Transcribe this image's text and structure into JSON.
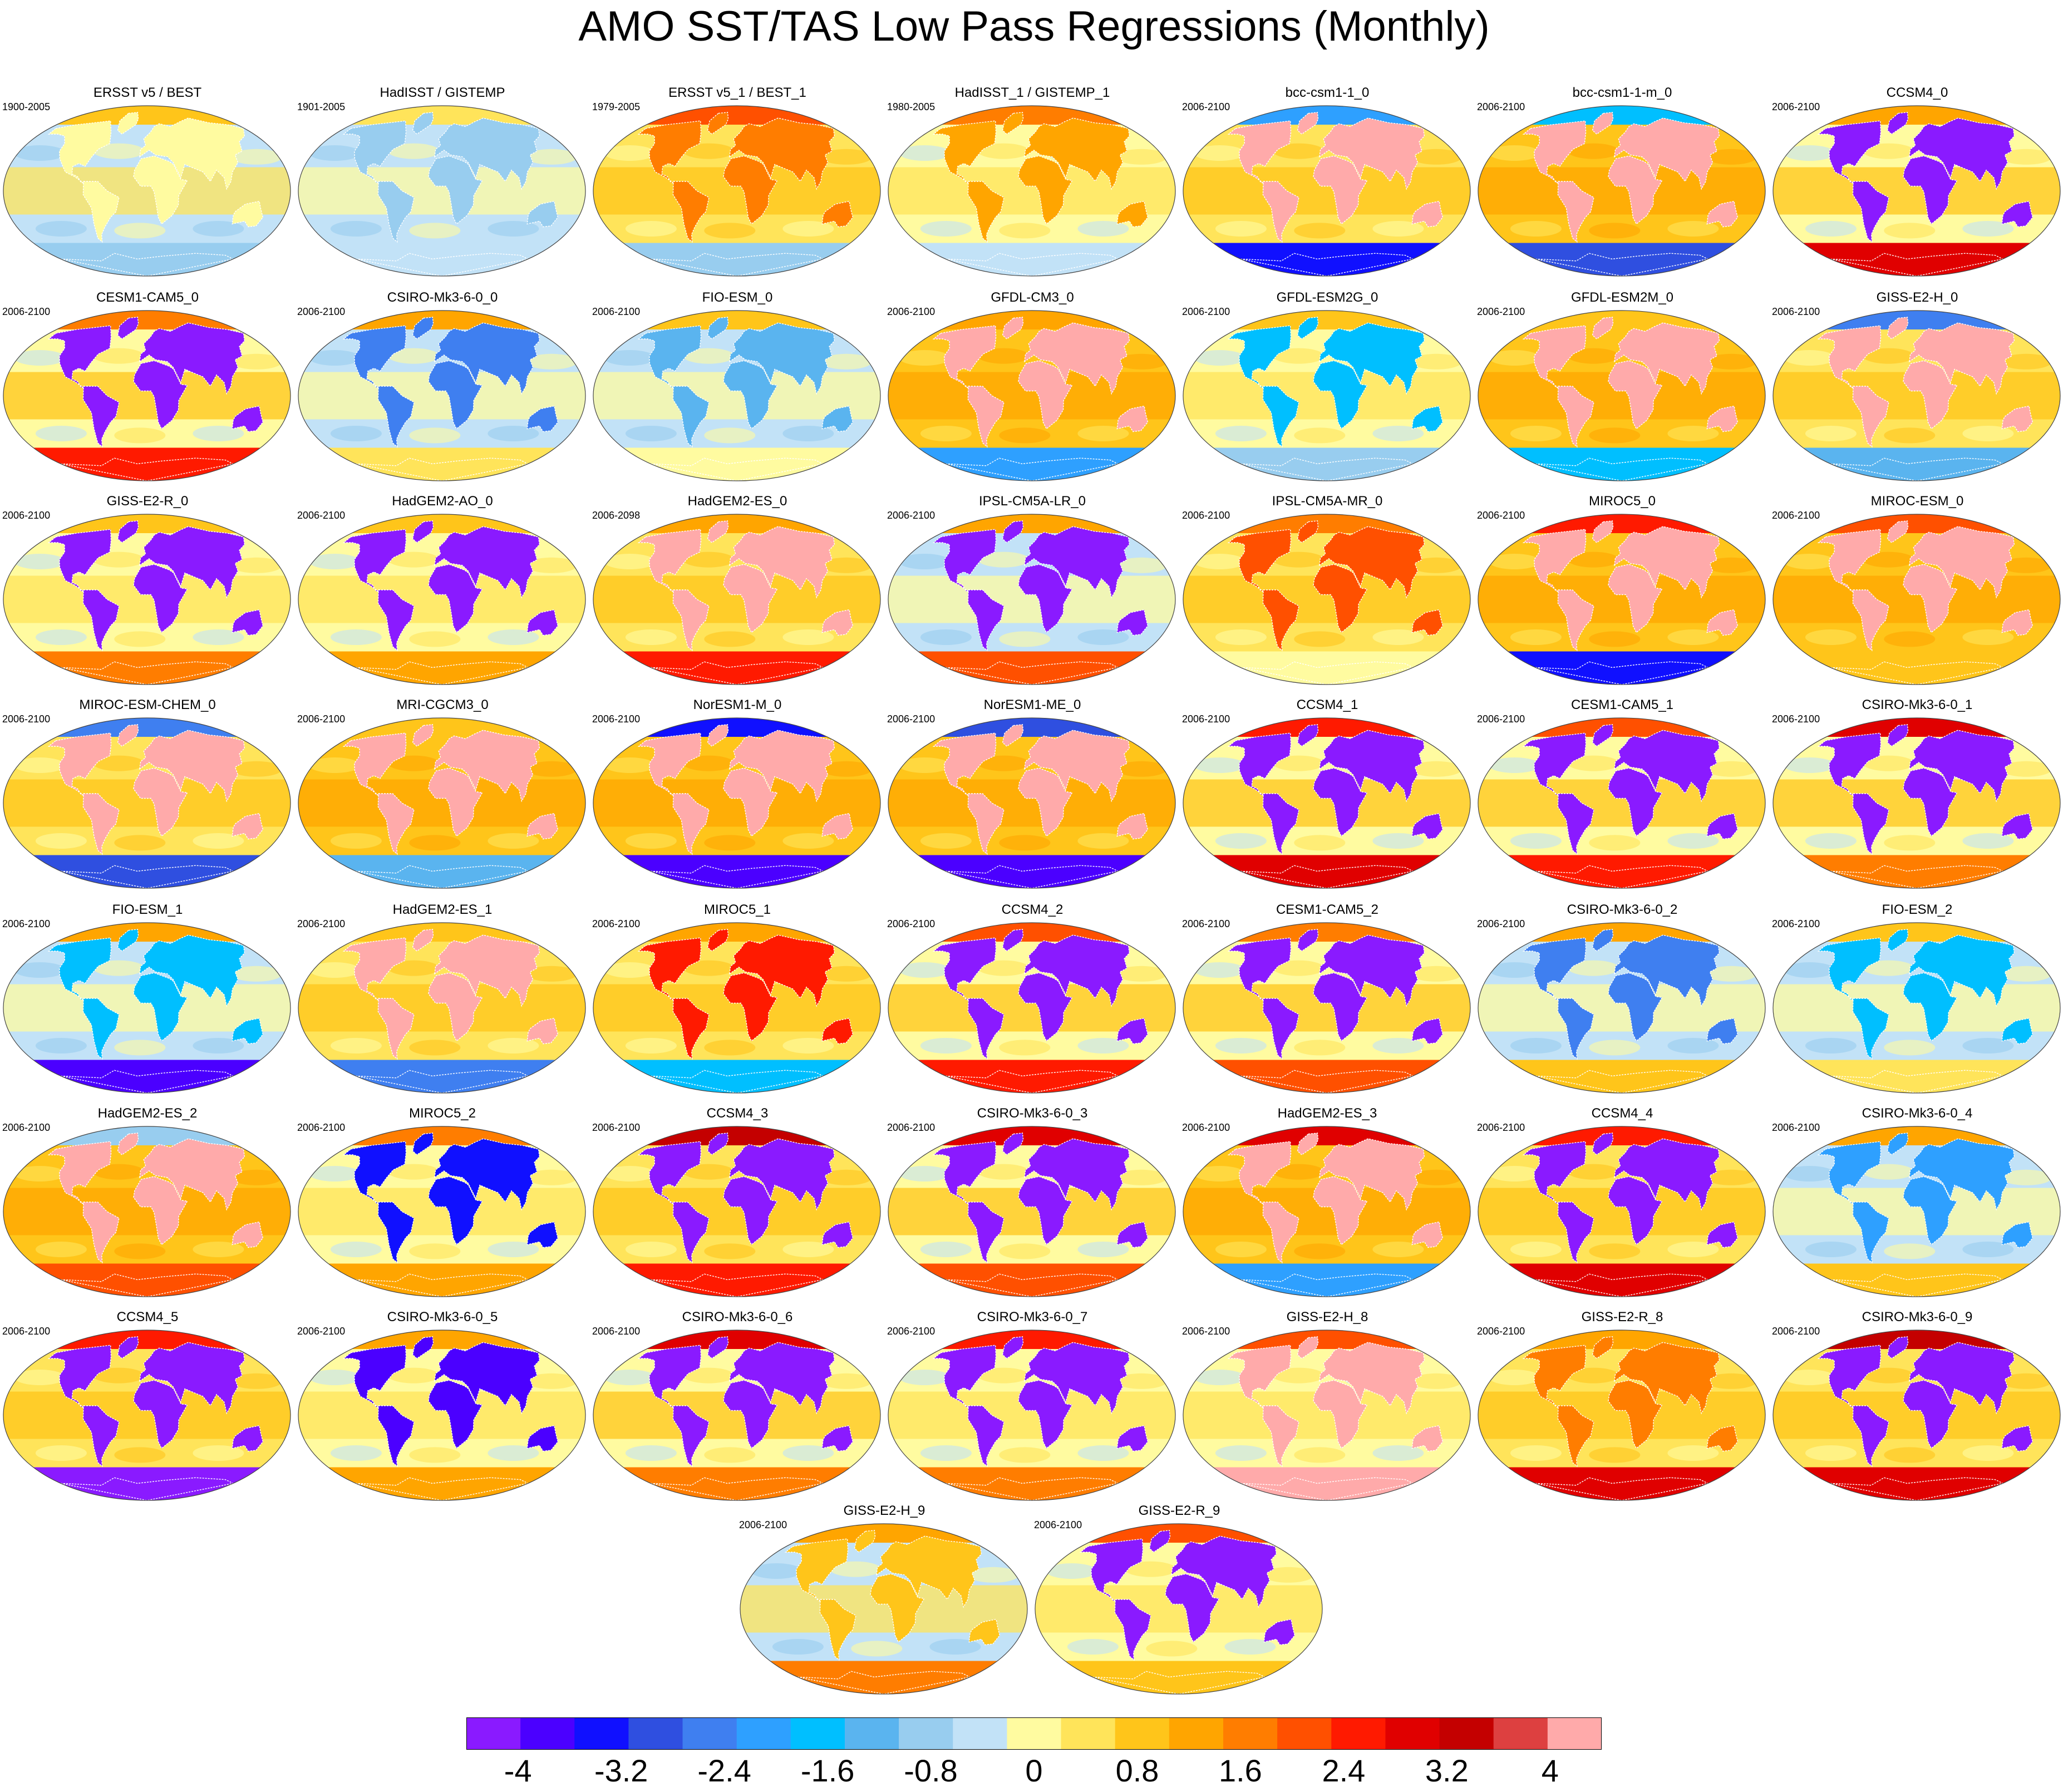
{
  "title": "AMO SST/TAS Low Pass Regressions (Monthly)",
  "colors": {
    "scale": [
      "#8a1aff",
      "#4b00ff",
      "#1010ff",
      "#2f4fe0",
      "#3f7ff0",
      "#2ea0ff",
      "#00bfff",
      "#5ab4ef",
      "#98cdef",
      "#c2e2f7",
      "#fffba0",
      "#ffe45a",
      "#ffc51a",
      "#ffa500",
      "#ff7d00",
      "#ff5000",
      "#ff1a00",
      "#e00000",
      "#c40000",
      "#dd4040",
      "#ffaaaa"
    ],
    "ocean_background": "#c2e2f7",
    "land_border": "#ffffff"
  },
  "chart_data": {
    "type": "heatmap",
    "title": "AMO SST/TAS Low Pass Regressions (Monthly)",
    "colorbar": {
      "ticks": [
        -4,
        -3.2,
        -2.4,
        -1.6,
        -0.8,
        0,
        0.8,
        1.6,
        2.4,
        3.2,
        4
      ],
      "tick_labels": [
        "-4",
        "-3.2",
        "-2.4",
        "-1.6",
        "-0.8",
        "0",
        "0.8",
        "1.6",
        "2.4",
        "3.2",
        "4"
      ],
      "levels": 21,
      "range": [
        -4.4,
        4.4
      ]
    },
    "panels": [
      {
        "title": "ERSST v5 / BEST",
        "period": "1900-2005",
        "ocean": 9,
        "land": 10,
        "tropics": 11,
        "arctic": 12,
        "southern": 8
      },
      {
        "title": "HadISST / GISTEMP",
        "period": "1901-2005",
        "ocean": 9,
        "land": 8,
        "tropics": 10,
        "arctic": 11,
        "southern": 9
      },
      {
        "title": "ERSST v5_1 / BEST_1",
        "period": "1979-2005",
        "ocean": 11,
        "land": 14,
        "tropics": 12,
        "arctic": 15,
        "southern": 8
      },
      {
        "title": "HadISST_1 / GISTEMP_1",
        "period": "1980-2005",
        "ocean": 10,
        "land": 13,
        "tropics": 11,
        "arctic": 14,
        "southern": 9
      },
      {
        "title": "bcc-csm1-1_0",
        "period": "2006-2100",
        "ocean": 11,
        "land": 20,
        "tropics": 12,
        "arctic": 5,
        "southern": 2
      },
      {
        "title": "bcc-csm1-1-m_0",
        "period": "2006-2100",
        "ocean": 12,
        "land": 20,
        "tropics": 13,
        "arctic": 6,
        "southern": 3
      },
      {
        "title": "CCSM4_0",
        "period": "2006-2100",
        "ocean": 10,
        "land": 0,
        "tropics": 12,
        "arctic": 13,
        "southern": 17
      },
      {
        "title": "CESM1-CAM5_0",
        "period": "2006-2100",
        "ocean": 10,
        "land": 0,
        "tropics": 12,
        "arctic": 14,
        "southern": 16
      },
      {
        "title": "CSIRO-Mk3-6-0_0",
        "period": "2006-2100",
        "ocean": 9,
        "land": 4,
        "tropics": 10,
        "arctic": 13,
        "southern": 11
      },
      {
        "title": "FIO-ESM_0",
        "period": "2006-2100",
        "ocean": 9,
        "land": 7,
        "tropics": 10,
        "arctic": 12,
        "southern": 10
      },
      {
        "title": "GFDL-CM3_0",
        "period": "2006-2100",
        "ocean": 12,
        "land": 20,
        "tropics": 13,
        "arctic": 13,
        "southern": 5
      },
      {
        "title": "GFDL-ESM2G_0",
        "period": "2006-2100",
        "ocean": 10,
        "land": 6,
        "tropics": 11,
        "arctic": 12,
        "southern": 8
      },
      {
        "title": "GFDL-ESM2M_0",
        "period": "2006-2100",
        "ocean": 12,
        "land": 20,
        "tropics": 13,
        "arctic": 12,
        "southern": 6
      },
      {
        "title": "GISS-E2-H_0",
        "period": "2006-2100",
        "ocean": 11,
        "land": 20,
        "tropics": 12,
        "arctic": 4,
        "southern": 7
      },
      {
        "title": "GISS-E2-R_0",
        "period": "2006-2100",
        "ocean": 10,
        "land": 0,
        "tropics": 11,
        "arctic": 12,
        "southern": 14
      },
      {
        "title": "HadGEM2-AO_0",
        "period": "2006-2100",
        "ocean": 10,
        "land": 0,
        "tropics": 11,
        "arctic": 12,
        "southern": 13
      },
      {
        "title": "HadGEM2-ES_0",
        "period": "2006-2098",
        "ocean": 11,
        "land": 20,
        "tropics": 12,
        "arctic": 13,
        "southern": 16
      },
      {
        "title": "IPSL-CM5A-LR_0",
        "period": "2006-2100",
        "ocean": 9,
        "land": 0,
        "tropics": 10,
        "arctic": 13,
        "southern": 15
      },
      {
        "title": "IPSL-CM5A-MR_0",
        "period": "2006-2100",
        "ocean": 11,
        "land": 15,
        "tropics": 12,
        "arctic": 14,
        "southern": 10
      },
      {
        "title": "MIROC5_0",
        "period": "2006-2100",
        "ocean": 12,
        "land": 20,
        "tropics": 13,
        "arctic": 16,
        "southern": 2
      },
      {
        "title": "MIROC-ESM_0",
        "period": "2006-2100",
        "ocean": 12,
        "land": 20,
        "tropics": 13,
        "arctic": 15,
        "southern": 12
      },
      {
        "title": "MIROC-ESM-CHEM_0",
        "period": "2006-2100",
        "ocean": 11,
        "land": 20,
        "tropics": 12,
        "arctic": 4,
        "southern": 3
      },
      {
        "title": "MRI-CGCM3_0",
        "period": "2006-2100",
        "ocean": 12,
        "land": 20,
        "tropics": 13,
        "arctic": 12,
        "southern": 7
      },
      {
        "title": "NorESM1-M_0",
        "period": "2006-2100",
        "ocean": 12,
        "land": 20,
        "tropics": 13,
        "arctic": 2,
        "southern": 1
      },
      {
        "title": "NorESM1-ME_0",
        "period": "2006-2100",
        "ocean": 12,
        "land": 20,
        "tropics": 13,
        "arctic": 3,
        "southern": 1
      },
      {
        "title": "CCSM4_1",
        "period": "2006-2100",
        "ocean": 10,
        "land": 0,
        "tropics": 12,
        "arctic": 16,
        "southern": 17
      },
      {
        "title": "CESM1-CAM5_1",
        "period": "2006-2100",
        "ocean": 10,
        "land": 0,
        "tropics": 12,
        "arctic": 15,
        "southern": 16
      },
      {
        "title": "CSIRO-Mk3-6-0_1",
        "period": "2006-2100",
        "ocean": 10,
        "land": 0,
        "tropics": 12,
        "arctic": 17,
        "southern": 14
      },
      {
        "title": "FIO-ESM_1",
        "period": "2006-2100",
        "ocean": 9,
        "land": 6,
        "tropics": 10,
        "arctic": 13,
        "southern": 1
      },
      {
        "title": "HadGEM2-ES_1",
        "period": "2006-2100",
        "ocean": 11,
        "land": 20,
        "tropics": 12,
        "arctic": 12,
        "southern": 4
      },
      {
        "title": "MIROC5_1",
        "period": "2006-2100",
        "ocean": 11,
        "land": 16,
        "tropics": 12,
        "arctic": 13,
        "southern": 6
      },
      {
        "title": "CCSM4_2",
        "period": "2006-2100",
        "ocean": 10,
        "land": 0,
        "tropics": 12,
        "arctic": 15,
        "southern": 16
      },
      {
        "title": "CESM1-CAM5_2",
        "period": "2006-2100",
        "ocean": 10,
        "land": 0,
        "tropics": 12,
        "arctic": 14,
        "southern": 15
      },
      {
        "title": "CSIRO-Mk3-6-0_2",
        "period": "2006-2100",
        "ocean": 9,
        "land": 4,
        "tropics": 10,
        "arctic": 13,
        "southern": 12
      },
      {
        "title": "FIO-ESM_2",
        "period": "2006-2100",
        "ocean": 9,
        "land": 6,
        "tropics": 10,
        "arctic": 12,
        "southern": 11
      },
      {
        "title": "HadGEM2-ES_2",
        "period": "2006-2100",
        "ocean": 12,
        "land": 20,
        "tropics": 13,
        "arctic": 8,
        "southern": 15
      },
      {
        "title": "MIROC5_2",
        "period": "2006-2100",
        "ocean": 10,
        "land": 2,
        "tropics": 11,
        "arctic": 14,
        "southern": 13
      },
      {
        "title": "CCSM4_3",
        "period": "2006-2100",
        "ocean": 11,
        "land": 0,
        "tropics": 12,
        "arctic": 18,
        "southern": 16
      },
      {
        "title": "CSIRO-Mk3-6-0_3",
        "period": "2006-2100",
        "ocean": 10,
        "land": 0,
        "tropics": 12,
        "arctic": 17,
        "southern": 15
      },
      {
        "title": "HadGEM2-ES_3",
        "period": "2006-2100",
        "ocean": 12,
        "land": 20,
        "tropics": 13,
        "arctic": 17,
        "southern": 5
      },
      {
        "title": "CCSM4_4",
        "period": "2006-2100",
        "ocean": 11,
        "land": 0,
        "tropics": 12,
        "arctic": 16,
        "southern": 17
      },
      {
        "title": "CSIRO-Mk3-6-0_4",
        "period": "2006-2100",
        "ocean": 9,
        "land": 5,
        "tropics": 10,
        "arctic": 13,
        "southern": 12
      },
      {
        "title": "CCSM4_5",
        "period": "2006-2100",
        "ocean": 11,
        "land": 0,
        "tropics": 12,
        "arctic": 16,
        "southern": 0
      },
      {
        "title": "CSIRO-Mk3-6-0_5",
        "period": "2006-2100",
        "ocean": 10,
        "land": 1,
        "tropics": 11,
        "arctic": 13,
        "southern": 13
      },
      {
        "title": "CSIRO-Mk3-6-0_6",
        "period": "2006-2100",
        "ocean": 10,
        "land": 0,
        "tropics": 12,
        "arctic": 17,
        "southern": 14
      },
      {
        "title": "CSIRO-Mk3-6-0_7",
        "period": "2006-2100",
        "ocean": 10,
        "land": 0,
        "tropics": 11,
        "arctic": 16,
        "southern": 14
      },
      {
        "title": "GISS-E2-H_8",
        "period": "2006-2100",
        "ocean": 10,
        "land": 20,
        "tropics": 11,
        "arctic": 15,
        "southern": 20
      },
      {
        "title": "GISS-E2-R_8",
        "period": "2006-2100",
        "ocean": 11,
        "land": 14,
        "tropics": 12,
        "arctic": 13,
        "southern": 17
      },
      {
        "title": "CSIRO-Mk3-6-0_9",
        "period": "2006-2100",
        "ocean": 11,
        "land": 0,
        "tropics": 12,
        "arctic": 18,
        "southern": 17
      },
      {
        "title": "GISS-E2-H_9",
        "period": "2006-2100",
        "ocean": 9,
        "land": 12,
        "tropics": 11,
        "arctic": 13,
        "southern": 14
      },
      {
        "title": "GISS-E2-R_9",
        "period": "2006-2100",
        "ocean": 10,
        "land": 0,
        "tropics": 11,
        "arctic": 15,
        "southern": 12
      }
    ]
  }
}
